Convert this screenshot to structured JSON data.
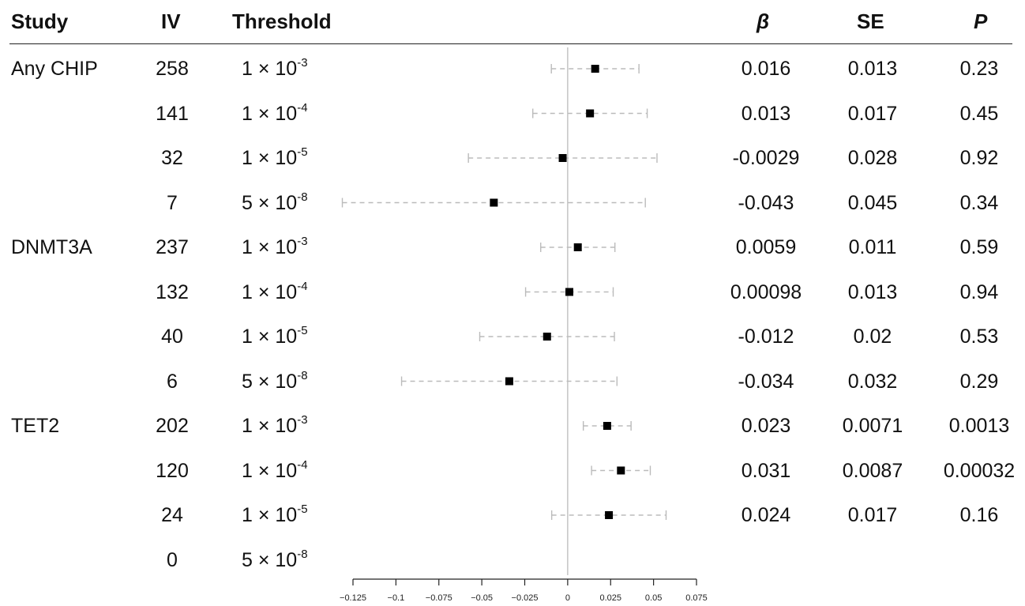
{
  "headers": {
    "study": "Study",
    "iv": "IV",
    "threshold": "Threshold",
    "beta": "β",
    "se": "SE",
    "p": "P"
  },
  "rows": [
    {
      "study": "Any CHIP",
      "iv": "258",
      "thr_base": "1 × 10",
      "thr_exp": "-3",
      "beta": "0.016",
      "se": "0.013",
      "p": "0.23"
    },
    {
      "study": "",
      "iv": "141",
      "thr_base": "1 × 10",
      "thr_exp": "-4",
      "beta": "0.013",
      "se": "0.017",
      "p": "0.45"
    },
    {
      "study": "",
      "iv": "32",
      "thr_base": "1 × 10",
      "thr_exp": "-5",
      "beta": "-0.0029",
      "se": "0.028",
      "p": "0.92"
    },
    {
      "study": "",
      "iv": "7",
      "thr_base": "5 × 10",
      "thr_exp": "-8",
      "beta": "-0.043",
      "se": "0.045",
      "p": "0.34"
    },
    {
      "study": "DNMT3A",
      "iv": "237",
      "thr_base": "1 × 10",
      "thr_exp": "-3",
      "beta": "0.0059",
      "se": "0.011",
      "p": "0.59"
    },
    {
      "study": "",
      "iv": "132",
      "thr_base": "1 × 10",
      "thr_exp": "-4",
      "beta": "0.00098",
      "se": "0.013",
      "p": "0.94"
    },
    {
      "study": "",
      "iv": "40",
      "thr_base": "1 × 10",
      "thr_exp": "-5",
      "beta": "-0.012",
      "se": "0.02",
      "p": "0.53"
    },
    {
      "study": "",
      "iv": "6",
      "thr_base": "5 × 10",
      "thr_exp": "-8",
      "beta": "-0.034",
      "se": "0.032",
      "p": "0.29"
    },
    {
      "study": "TET2",
      "iv": "202",
      "thr_base": "1 × 10",
      "thr_exp": "-3",
      "beta": "0.023",
      "se": "0.0071",
      "p": "0.0013"
    },
    {
      "study": "",
      "iv": "120",
      "thr_base": "1 × 10",
      "thr_exp": "-4",
      "beta": "0.031",
      "se": "0.0087",
      "p": "0.00032"
    },
    {
      "study": "",
      "iv": "24",
      "thr_base": "1 × 10",
      "thr_exp": "-5",
      "beta": "0.024",
      "se": "0.017",
      "p": "0.16"
    },
    {
      "study": "",
      "iv": "0",
      "thr_base": "5 × 10",
      "thr_exp": "-8",
      "beta": "",
      "se": "",
      "p": ""
    }
  ],
  "chart_data": {
    "type": "forest",
    "xlim": [
      -0.125,
      0.075
    ],
    "ticks": [
      -0.125,
      -0.1,
      -0.075,
      -0.05,
      -0.025,
      0,
      0.025,
      0.05,
      0.075
    ],
    "tick_labels": [
      "−0.125",
      "−0.1",
      "−0.075",
      "−0.05",
      "−0.025",
      "0",
      "0.025",
      "0.05",
      "0.075"
    ],
    "reference_line": 0,
    "points": [
      {
        "beta": 0.016,
        "lo": -0.0095,
        "hi": 0.0415
      },
      {
        "beta": 0.013,
        "lo": -0.0203,
        "hi": 0.0463
      },
      {
        "beta": -0.0029,
        "lo": -0.0578,
        "hi": 0.052
      },
      {
        "beta": -0.043,
        "lo": -0.1312,
        "hi": 0.0452
      },
      {
        "beta": 0.0059,
        "lo": -0.0157,
        "hi": 0.0275
      },
      {
        "beta": 0.00098,
        "lo": -0.0245,
        "hi": 0.0265
      },
      {
        "beta": -0.012,
        "lo": -0.0512,
        "hi": 0.0272
      },
      {
        "beta": -0.034,
        "lo": -0.0967,
        "hi": 0.0287
      },
      {
        "beta": 0.023,
        "lo": 0.0091,
        "hi": 0.0369
      },
      {
        "beta": 0.031,
        "lo": 0.0139,
        "hi": 0.0481
      },
      {
        "beta": 0.024,
        "lo": -0.0093,
        "hi": 0.0573
      },
      null
    ],
    "colors": {
      "point": "#000000",
      "ci": "#bbbbbb",
      "reference": "#bbbbbb",
      "axis": "#222222"
    }
  }
}
